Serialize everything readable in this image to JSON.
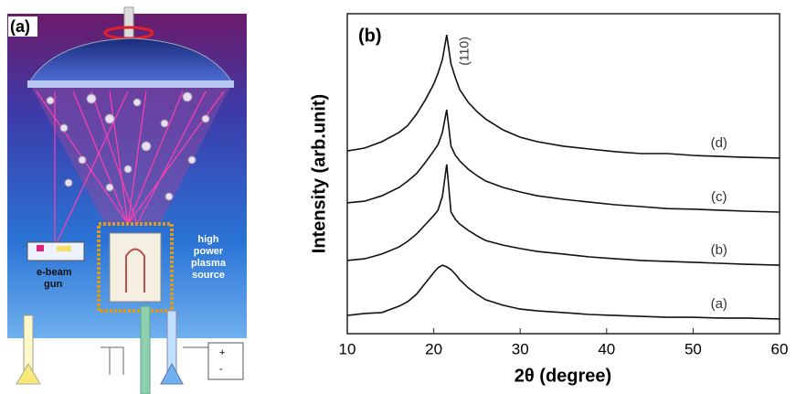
{
  "diagram": {
    "panel_label": "(a)",
    "e_beam_gun": [
      "e-beam",
      "gun"
    ],
    "plasma_source": [
      "high",
      "power",
      "plasma",
      "source"
    ],
    "power_supply": [
      "+",
      "-"
    ]
  },
  "chart_data": {
    "type": "line",
    "panel_label": "(b)",
    "x_label": "2θ (degree)",
    "y_label": "Intensity (arb.unit)",
    "annotation": "(110)",
    "xlim": [
      10,
      60
    ],
    "xticks": [
      10,
      20,
      30,
      40,
      50,
      60
    ],
    "ylim": [
      0,
      100
    ],
    "x": [
      10,
      12,
      14,
      16,
      17,
      18,
      19,
      20,
      20.5,
      21,
      21.5,
      22,
      22.5,
      23,
      24,
      25,
      26,
      28,
      30,
      32,
      35,
      38,
      41,
      44,
      47,
      50,
      53,
      56,
      60
    ],
    "series": [
      {
        "name": "(a)",
        "color": "#111111",
        "values": [
          5.7,
          6.3,
          6.6,
          8.6,
          10,
          12.3,
          15.7,
          19.1,
          20.6,
          21.4,
          20.9,
          20,
          18.6,
          16.9,
          14.3,
          12.3,
          10.6,
          8.9,
          7.7,
          7.1,
          6.6,
          6,
          5.7,
          5.4,
          5.1,
          5.1,
          4.9,
          4.9,
          4.6
        ]
      },
      {
        "name": "(b)",
        "color": "#111111",
        "values": [
          22.9,
          23.4,
          24.9,
          27.1,
          28.9,
          31.1,
          34,
          36.9,
          38.6,
          42.9,
          52.9,
          38,
          35.7,
          34.3,
          32.3,
          30.6,
          29.1,
          27.7,
          26.6,
          25.7,
          24.9,
          24,
          23.4,
          22.9,
          22.6,
          22.3,
          22,
          21.7,
          21.4
        ]
      },
      {
        "name": "(c)",
        "color": "#111111",
        "values": [
          40.9,
          41.4,
          43.1,
          45.7,
          47.7,
          50,
          53.4,
          57.1,
          59.1,
          62.9,
          70,
          58.6,
          55.7,
          54,
          51.4,
          49.4,
          47.7,
          45.7,
          44.3,
          43.1,
          42,
          41.1,
          40.3,
          39.7,
          39.1,
          38.9,
          38.6,
          38.3,
          38
        ]
      },
      {
        "name": "(d)",
        "color": "#111111",
        "values": [
          57.1,
          58,
          60,
          62.9,
          65.1,
          68.6,
          72.9,
          78,
          81.4,
          85.7,
          93.4,
          84.3,
          80,
          76.3,
          72.3,
          69.4,
          67.1,
          63.7,
          61.4,
          60,
          58.6,
          57.7,
          56.9,
          56.3,
          56.3,
          55.7,
          55.4,
          55.1,
          54.9
        ]
      }
    ]
  }
}
